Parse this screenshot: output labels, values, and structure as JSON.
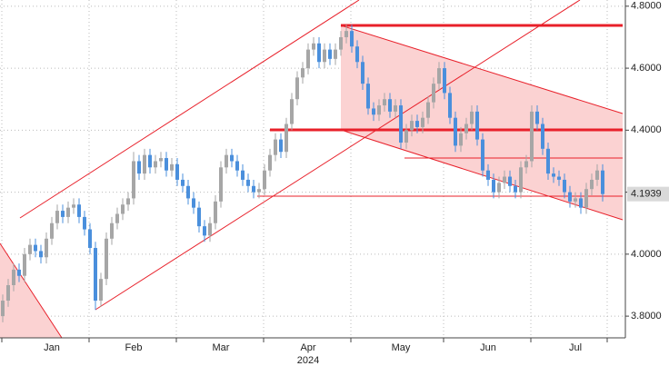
{
  "chart_data": {
    "type": "candlestick",
    "categories": [
      null,
      null,
      null,
      null,
      null,
      null,
      null,
      null,
      null,
      "Jan",
      null,
      null,
      null,
      null,
      null,
      null,
      null,
      null,
      null,
      null,
      null,
      null,
      null,
      null,
      "Feb",
      null,
      null,
      null,
      null,
      null,
      null,
      null,
      null,
      null,
      null,
      null,
      null,
      null,
      null,
      null,
      "Mar",
      null,
      null,
      null,
      null,
      null,
      null,
      null,
      null,
      null,
      null,
      null,
      null,
      null,
      null,
      null,
      "Apr",
      null,
      null,
      null,
      null,
      null,
      null,
      null,
      null,
      null,
      null,
      null,
      null,
      null,
      null,
      null,
      null,
      "May",
      null,
      null,
      null,
      null,
      null,
      null,
      null,
      null,
      null,
      null,
      null,
      null,
      null,
      null,
      null,
      "Jun",
      null,
      null,
      null,
      null,
      null,
      null,
      null,
      null,
      null,
      null,
      null,
      null,
      null,
      null,
      null,
      "Jul",
      null,
      null,
      null,
      null,
      null
    ],
    "year_label": "2024",
    "ohlc": [
      [
        3.8,
        3.87,
        3.78,
        3.85
      ],
      [
        3.85,
        3.92,
        3.83,
        3.9
      ],
      [
        3.9,
        3.97,
        3.88,
        3.95
      ],
      [
        3.95,
        3.97,
        3.91,
        3.93
      ],
      [
        3.93,
        4.02,
        3.91,
        4.0
      ],
      [
        4.0,
        4.05,
        3.98,
        4.03
      ],
      [
        4.03,
        4.05,
        3.99,
        4.01
      ],
      [
        4.01,
        4.03,
        3.97,
        3.99
      ],
      [
        3.99,
        4.07,
        3.97,
        4.05
      ],
      [
        4.05,
        4.12,
        4.03,
        4.1
      ],
      [
        4.1,
        4.16,
        4.08,
        4.14
      ],
      [
        4.14,
        4.16,
        4.1,
        4.12
      ],
      [
        4.12,
        4.17,
        4.1,
        4.15
      ],
      [
        4.15,
        4.18,
        4.13,
        4.16
      ],
      [
        4.16,
        4.18,
        4.1,
        4.12
      ],
      [
        4.12,
        4.14,
        4.06,
        4.08
      ],
      [
        4.08,
        4.1,
        4.0,
        4.02
      ],
      [
        4.02,
        4.04,
        3.82,
        3.85
      ],
      [
        3.85,
        3.94,
        3.83,
        3.92
      ],
      [
        3.92,
        4.07,
        3.9,
        4.05
      ],
      [
        4.05,
        4.12,
        4.03,
        4.1
      ],
      [
        4.1,
        4.15,
        4.08,
        4.13
      ],
      [
        4.13,
        4.18,
        4.11,
        4.16
      ],
      [
        4.16,
        4.2,
        4.14,
        4.18
      ],
      [
        4.18,
        4.33,
        4.16,
        4.3
      ],
      [
        4.3,
        4.32,
        4.24,
        4.26
      ],
      [
        4.26,
        4.34,
        4.24,
        4.32
      ],
      [
        4.32,
        4.34,
        4.26,
        4.28
      ],
      [
        4.28,
        4.32,
        4.26,
        4.3
      ],
      [
        4.3,
        4.33,
        4.28,
        4.31
      ],
      [
        4.31,
        4.33,
        4.25,
        4.27
      ],
      [
        4.27,
        4.31,
        4.25,
        4.29
      ],
      [
        4.29,
        4.31,
        4.22,
        4.24
      ],
      [
        4.24,
        4.26,
        4.2,
        4.22
      ],
      [
        4.22,
        4.24,
        4.16,
        4.18
      ],
      [
        4.18,
        4.2,
        4.13,
        4.15
      ],
      [
        4.15,
        4.17,
        4.07,
        4.09
      ],
      [
        4.09,
        4.11,
        4.04,
        4.06
      ],
      [
        4.06,
        4.12,
        4.04,
        4.1
      ],
      [
        4.1,
        4.19,
        4.08,
        4.17
      ],
      [
        4.17,
        4.3,
        4.15,
        4.28
      ],
      [
        4.28,
        4.34,
        4.26,
        4.32
      ],
      [
        4.32,
        4.34,
        4.28,
        4.3
      ],
      [
        4.3,
        4.32,
        4.25,
        4.27
      ],
      [
        4.27,
        4.29,
        4.22,
        4.24
      ],
      [
        4.24,
        4.26,
        4.2,
        4.22
      ],
      [
        4.22,
        4.24,
        4.18,
        4.2
      ],
      [
        4.2,
        4.23,
        4.18,
        4.21
      ],
      [
        4.21,
        4.29,
        4.19,
        4.27
      ],
      [
        4.27,
        4.34,
        4.25,
        4.32
      ],
      [
        4.32,
        4.39,
        4.3,
        4.37
      ],
      [
        4.37,
        4.39,
        4.31,
        4.33
      ],
      [
        4.33,
        4.44,
        4.31,
        4.42
      ],
      [
        4.42,
        4.52,
        4.4,
        4.5
      ],
      [
        4.5,
        4.59,
        4.48,
        4.57
      ],
      [
        4.57,
        4.62,
        4.55,
        4.6
      ],
      [
        4.6,
        4.68,
        4.58,
        4.66
      ],
      [
        4.66,
        4.7,
        4.64,
        4.68
      ],
      [
        4.68,
        4.7,
        4.6,
        4.62
      ],
      [
        4.62,
        4.68,
        4.6,
        4.66
      ],
      [
        4.66,
        4.68,
        4.61,
        4.63
      ],
      [
        4.63,
        4.68,
        4.61,
        4.66
      ],
      [
        4.66,
        4.72,
        4.64,
        4.7
      ],
      [
        4.7,
        4.74,
        4.68,
        4.72
      ],
      [
        4.72,
        4.74,
        4.65,
        4.67
      ],
      [
        4.67,
        4.69,
        4.6,
        4.62
      ],
      [
        4.62,
        4.64,
        4.53,
        4.55
      ],
      [
        4.55,
        4.57,
        4.45,
        4.47
      ],
      [
        4.47,
        4.49,
        4.43,
        4.45
      ],
      [
        4.45,
        4.5,
        4.43,
        4.48
      ],
      [
        4.48,
        4.52,
        4.46,
        4.5
      ],
      [
        4.5,
        4.52,
        4.44,
        4.46
      ],
      [
        4.46,
        4.5,
        4.44,
        4.48
      ],
      [
        4.48,
        4.5,
        4.34,
        4.36
      ],
      [
        4.36,
        4.42,
        4.34,
        4.4
      ],
      [
        4.4,
        4.45,
        4.38,
        4.43
      ],
      [
        4.43,
        4.45,
        4.39,
        4.41
      ],
      [
        4.41,
        4.46,
        4.39,
        4.44
      ],
      [
        4.44,
        4.51,
        4.42,
        4.49
      ],
      [
        4.49,
        4.57,
        4.47,
        4.55
      ],
      [
        4.55,
        4.62,
        4.53,
        4.6
      ],
      [
        4.6,
        4.62,
        4.5,
        4.52
      ],
      [
        4.52,
        4.54,
        4.42,
        4.44
      ],
      [
        4.44,
        4.46,
        4.33,
        4.35
      ],
      [
        4.35,
        4.41,
        4.33,
        4.39
      ],
      [
        4.39,
        4.44,
        4.37,
        4.42
      ],
      [
        4.42,
        4.48,
        4.4,
        4.46
      ],
      [
        4.46,
        4.48,
        4.35,
        4.37
      ],
      [
        4.37,
        4.39,
        4.25,
        4.27
      ],
      [
        4.27,
        4.29,
        4.22,
        4.24
      ],
      [
        4.24,
        4.26,
        4.18,
        4.2
      ],
      [
        4.2,
        4.25,
        4.18,
        4.23
      ],
      [
        4.23,
        4.27,
        4.21,
        4.25
      ],
      [
        4.25,
        4.27,
        4.2,
        4.22
      ],
      [
        4.22,
        4.24,
        4.18,
        4.2
      ],
      [
        4.2,
        4.3,
        4.18,
        4.28
      ],
      [
        4.28,
        4.32,
        4.26,
        4.3
      ],
      [
        4.3,
        4.48,
        4.28,
        4.46
      ],
      [
        4.46,
        4.48,
        4.4,
        4.42
      ],
      [
        4.42,
        4.44,
        4.32,
        4.34
      ],
      [
        4.34,
        4.36,
        4.24,
        4.26
      ],
      [
        4.26,
        4.28,
        4.23,
        4.25
      ],
      [
        4.25,
        4.27,
        4.22,
        4.24
      ],
      [
        4.24,
        4.26,
        4.18,
        4.2
      ],
      [
        4.2,
        4.22,
        4.15,
        4.17
      ],
      [
        4.17,
        4.2,
        4.15,
        4.18
      ],
      [
        4.18,
        4.2,
        4.13,
        4.15
      ],
      [
        4.15,
        4.23,
        4.13,
        4.21
      ],
      [
        4.21,
        4.26,
        4.19,
        4.24
      ],
      [
        4.24,
        4.29,
        4.22,
        4.27
      ],
      [
        4.27,
        4.29,
        4.17,
        4.1939
      ]
    ],
    "up_color": "#a6a6a6",
    "down_color": "#4a8fdc",
    "ylim": [
      3.73,
      4.82
    ],
    "yticks": [
      {
        "value": 3.8,
        "label": "3.8000"
      },
      {
        "value": 4.0,
        "label": "4.0000"
      },
      {
        "value": 4.2,
        "label": "4.2000"
      },
      {
        "value": 4.4,
        "label": "4.4000"
      },
      {
        "value": 4.6,
        "label": "4.6000"
      },
      {
        "value": 4.8,
        "label": "4.8000"
      }
    ],
    "last_price": 4.1939,
    "grid": true
  }
}
